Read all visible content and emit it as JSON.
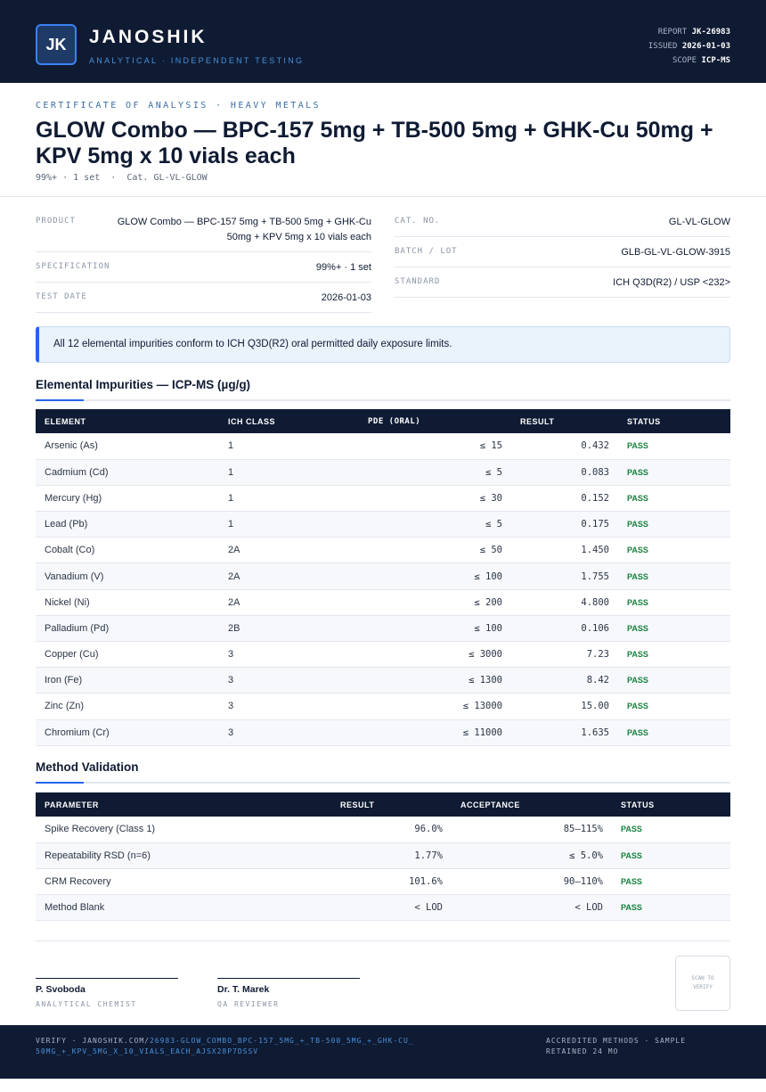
{
  "header": {
    "logo": "JK",
    "brand": "JANOSHIK",
    "tagline": "ANALYTICAL · INDEPENDENT TESTING",
    "report_label": "REPORT",
    "report": "JK-26983",
    "issued_label": "ISSUED",
    "issued": "2026-01-03",
    "scope_label": "SCOPE",
    "scope": "ICP-MS"
  },
  "intro": {
    "kicker": "CERTIFICATE OF ANALYSIS · HEAVY METALS",
    "title": "GLOW Combo — BPC-157 5mg + TB-500 5mg + GHK-Cu 50mg + KPV 5mg x 10 vials each",
    "subtitle": "99%+ · 1 set  ·  Cat. GL-VL-GLOW"
  },
  "details": {
    "left": [
      {
        "label": "PRODUCT",
        "value": "GLOW Combo — BPC-157 5mg + TB-500 5mg + GHK-Cu 50mg + KPV 5mg x 10 vials each"
      },
      {
        "label": "SPECIFICATION",
        "value": "99%+ · 1 set"
      },
      {
        "label": "TEST DATE",
        "value": "2026-01-03"
      }
    ],
    "right": [
      {
        "label": "CAT. NO.",
        "value": "GL-VL-GLOW"
      },
      {
        "label": "BATCH / LOT",
        "value": "GLB-GL-VL-GLOW-3915"
      },
      {
        "label": "STANDARD",
        "value": "ICH Q3D(R2) / USP <232>"
      }
    ]
  },
  "notice": "All 12 elemental impurities conform to ICH Q3D(R2) oral permitted daily exposure limits.",
  "impurities": {
    "title": "Elemental Impurities — ICP-MS (µg/g)",
    "columns": [
      "ELEMENT",
      "ICH CLASS",
      "PDE (ORAL)",
      "RESULT",
      "STATUS"
    ],
    "rows": [
      [
        "Arsenic (As)",
        "1",
        "≤ 15",
        "0.432",
        "PASS"
      ],
      [
        "Cadmium (Cd)",
        "1",
        "≤ 5",
        "0.083",
        "PASS"
      ],
      [
        "Mercury (Hg)",
        "1",
        "≤ 30",
        "0.152",
        "PASS"
      ],
      [
        "Lead (Pb)",
        "1",
        "≤ 5",
        "0.175",
        "PASS"
      ],
      [
        "Cobalt (Co)",
        "2A",
        "≤ 50",
        "1.450",
        "PASS"
      ],
      [
        "Vanadium (V)",
        "2A",
        "≤ 100",
        "1.755",
        "PASS"
      ],
      [
        "Nickel (Ni)",
        "2A",
        "≤ 200",
        "4.800",
        "PASS"
      ],
      [
        "Palladium (Pd)",
        "2B",
        "≤ 100",
        "0.106",
        "PASS"
      ],
      [
        "Copper (Cu)",
        "3",
        "≤ 3000",
        "7.23",
        "PASS"
      ],
      [
        "Iron (Fe)",
        "3",
        "≤ 1300",
        "8.42",
        "PASS"
      ],
      [
        "Zinc (Zn)",
        "3",
        "≤ 13000",
        "15.00",
        "PASS"
      ],
      [
        "Chromium (Cr)",
        "3",
        "≤ 11000",
        "1.635",
        "PASS"
      ]
    ]
  },
  "validation": {
    "title": "Method Validation",
    "columns": [
      "PARAMETER",
      "RESULT",
      "ACCEPTANCE",
      "STATUS"
    ],
    "rows": [
      [
        "Spike Recovery (Class 1)",
        "96.0%",
        "85–115%",
        "PASS"
      ],
      [
        "Repeatability RSD (n=6)",
        "1.77%",
        "≤ 5.0%",
        "PASS"
      ],
      [
        "CRM Recovery",
        "101.6%",
        "90–110%",
        "PASS"
      ],
      [
        "Method Blank",
        "< LOD",
        "< LOD",
        "PASS"
      ]
    ]
  },
  "signatures": [
    {
      "name": "P. Svoboda",
      "role": "ANALYTICAL CHEMIST"
    },
    {
      "name": "Dr. T. Marek",
      "role": "QA REVIEWER"
    }
  ],
  "qr": "SCAN TO VERIFY",
  "footer": {
    "verify": "VERIFY · JANOSHIK.COM/",
    "link": "26983-GLOW_COMBO_BPC-157_5MG_+_TB-500_5MG_+_GHK-CU_50MG_+_KPV_5MG_X_10_VIALS_EACH_AJSX28P7DSSV",
    "note": "ACCREDITED METHODS · SAMPLE RETAINED 24 MO"
  }
}
